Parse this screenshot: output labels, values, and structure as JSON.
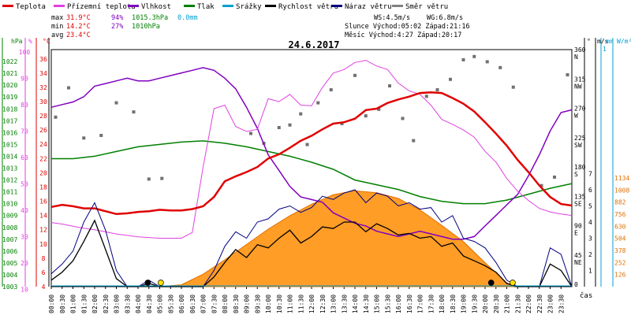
{
  "legend": [
    {
      "label": "Teplota",
      "color": "#e00000"
    },
    {
      "label": "Přízemní teplota",
      "color": "#e040e0"
    },
    {
      "label": "Vlhkost",
      "color": "#8000c0"
    },
    {
      "label": "Tlak",
      "color": "#008000"
    },
    {
      "label": "Srážky",
      "color": "#00a0d0"
    },
    {
      "label": "Rychlost větru",
      "color": "#000000"
    },
    {
      "label": "Náraz větru",
      "color": "#000080"
    },
    {
      "label": "Směr větru",
      "color": "#808080"
    }
  ],
  "summary": {
    "max_label": "max",
    "max_temp": "31.9°C",
    "max_hum": "94%",
    "max_press": "1015.3hPa",
    "rain": "0.0mm",
    "min_label": "min",
    "min_temp": "14.2°C",
    "min_hum": "27%",
    "min_press": "1010hPa",
    "avg_label": "avg",
    "avg_temp": "23.4°C",
    "ws": "WS:4.5m/s",
    "wg": "WG:6.8m/s",
    "sun": "Slunce Východ:05:02  Západ:21:16",
    "moon": "Měsíc  Východ:4:27  Západ:20:17"
  },
  "chart_data": {
    "type": "line",
    "title": "24.6.2017",
    "xlabel": "čas",
    "x_ticks": [
      "00:00",
      "00:30",
      "01:00",
      "01:30",
      "02:00",
      "02:30",
      "03:00",
      "03:30",
      "04:00",
      "04:30",
      "05:00",
      "05:30",
      "06:00",
      "06:30",
      "07:00",
      "07:30",
      "08:00",
      "08:30",
      "09:00",
      "09:30",
      "10:00",
      "10:30",
      "11:00",
      "11:30",
      "12:00",
      "12:30",
      "13:00",
      "13:30",
      "14:00",
      "14:30",
      "15:00",
      "15:30",
      "16:00",
      "16:30",
      "17:00",
      "17:30",
      "18:00",
      "18:30",
      "19:00",
      "19:30",
      "20:00",
      "20:30",
      "21:00",
      "21:30",
      "22:00",
      "22:30",
      "23:00",
      "23:30"
    ],
    "axes": {
      "hPa": {
        "label": "hPa",
        "ticks": [
          "1022",
          "1021",
          "1020",
          "1019",
          "1018",
          "1017",
          "1016",
          "1015",
          "1014",
          "1013",
          "1012",
          "1011",
          "1010",
          "1009",
          "1008",
          "1007",
          "1006",
          "1005",
          "1004",
          "1003"
        ],
        "range": [
          1003,
          1023
        ]
      },
      "percent": {
        "label": "%",
        "ticks": [
          "100",
          "90",
          "80",
          "70",
          "60",
          "50",
          "40",
          "30",
          "20",
          "10"
        ]
      },
      "celsius": {
        "label": "°C",
        "ticks": [
          "36",
          "34",
          "32",
          "30",
          "28",
          "26",
          "24",
          "22",
          "20",
          "18",
          "16",
          "14",
          "12",
          "10",
          "8",
          "6",
          "4"
        ],
        "range": [
          4,
          37.3
        ]
      },
      "wind_dir": {
        "label": "°",
        "ticks": [
          "360 N",
          "315 NW",
          "270 W",
          "225 SW",
          "180 S",
          "135 SE",
          "90 E",
          "45 NE",
          "0"
        ]
      },
      "ms": {
        "label": "m/s",
        "ticks": [
          "7",
          "6",
          "5",
          "4",
          "3",
          "2",
          "1"
        ]
      },
      "mm": {
        "label": "mm",
        "ticks": [
          "1"
        ]
      },
      "wm2": {
        "label": "W/m²",
        "ticks": [
          "1134",
          "1008",
          "882",
          "756",
          "630",
          "504",
          "378",
          "252",
          "126"
        ]
      }
    },
    "series": [
      {
        "name": "Teplota",
        "unit": "°C",
        "x": [
          0,
          0.5,
          1,
          1.5,
          2,
          2.5,
          3,
          3.5,
          4,
          4.5,
          5,
          5.5,
          6,
          6.5,
          7,
          7.5,
          8,
          8.5,
          9,
          9.5,
          10,
          10.5,
          11,
          11.5,
          12,
          12.5,
          13,
          13.5,
          14,
          14.5,
          15,
          15.5,
          16,
          16.5,
          17,
          17.5,
          18,
          18.5,
          19,
          19.5,
          20,
          20.5,
          21,
          21.5,
          22,
          22.5,
          23,
          23.5,
          24
        ],
        "values": [
          15.2,
          15.5,
          15.3,
          15.0,
          15.0,
          14.6,
          14.2,
          14.3,
          14.5,
          14.6,
          14.8,
          14.7,
          14.7,
          14.9,
          15.3,
          16.6,
          18.8,
          19.5,
          20.1,
          20.8,
          22.0,
          22.6,
          23.5,
          24.5,
          25.2,
          26.1,
          26.9,
          27.1,
          27.6,
          28.8,
          29.0,
          29.8,
          30.3,
          30.7,
          31.2,
          31.3,
          31.2,
          30.5,
          29.7,
          28.6,
          27.1,
          25.5,
          23.8,
          21.8,
          20.1,
          18.2,
          16.6,
          15.6,
          15.4
        ]
      },
      {
        "name": "Přízemní teplota",
        "unit": "°C",
        "x": [
          0,
          0.5,
          1,
          1.5,
          2,
          2.5,
          3,
          3.5,
          4,
          4.5,
          5,
          5.5,
          6,
          6.5,
          7,
          7.5,
          8,
          8.5,
          9,
          9.5,
          10,
          10.5,
          11,
          11.5,
          12,
          12.5,
          13,
          13.5,
          14,
          14.5,
          15,
          15.5,
          16,
          16.5,
          17,
          17.5,
          18,
          18.5,
          19,
          19.5,
          20,
          20.5,
          21,
          21.5,
          22,
          22.5,
          23,
          23.5,
          24
        ],
        "values": [
          13.0,
          12.8,
          12.5,
          12.2,
          12.0,
          11.7,
          11.4,
          11.2,
          11.0,
          10.9,
          10.8,
          10.8,
          10.8,
          11.6,
          20.8,
          29.0,
          29.5,
          26.5,
          25.8,
          26.1,
          30.4,
          30.0,
          31.0,
          29.5,
          29.4,
          32.0,
          34.0,
          34.5,
          35.5,
          35.8,
          35.0,
          34.5,
          32.6,
          31.5,
          31.0,
          29.5,
          27.5,
          26.8,
          26.0,
          25.0,
          23.0,
          21.5,
          19.2,
          17.4,
          16.1,
          15.0,
          14.5,
          14.2,
          14.0
        ]
      },
      {
        "name": "Vlhkost",
        "unit": "%",
        "x": [
          0,
          0.5,
          1,
          1.5,
          2,
          2.5,
          3,
          3.5,
          4,
          4.5,
          5,
          5.5,
          6,
          6.5,
          7,
          7.5,
          8,
          8.5,
          9,
          9.5,
          10,
          10.5,
          11,
          11.5,
          12,
          12.5,
          13,
          13.5,
          14,
          14.5,
          15,
          15.5,
          16,
          16.5,
          17,
          17.5,
          18,
          18.5,
          19,
          19.5,
          20,
          20.5,
          21,
          21.5,
          22,
          22.5,
          23,
          23.5,
          24
        ],
        "values": [
          78,
          79,
          80,
          82,
          86,
          87,
          88,
          89,
          88,
          88,
          89,
          90,
          91,
          92,
          93,
          92,
          89,
          85,
          78,
          70,
          60,
          54,
          48,
          44,
          43,
          42,
          38,
          36,
          34,
          33,
          31,
          30,
          29,
          30,
          31,
          30,
          29,
          28,
          28,
          29,
          33,
          37,
          41,
          45,
          52,
          60,
          69,
          76,
          77
        ]
      },
      {
        "name": "Tlak",
        "unit": "hPa",
        "x": [
          0,
          1,
          2,
          3,
          4,
          5,
          6,
          7,
          8,
          9,
          10,
          11,
          12,
          13,
          14,
          15,
          16,
          17,
          18,
          19,
          20,
          21,
          22,
          23,
          24
        ],
        "values": [
          1013.8,
          1013.8,
          1014.0,
          1014.4,
          1014.8,
          1015.0,
          1015.2,
          1015.3,
          1015.1,
          1014.8,
          1014.4,
          1014.0,
          1013.5,
          1012.9,
          1012.0,
          1011.6,
          1011.2,
          1010.6,
          1010.2,
          1010.0,
          1010.0,
          1010.3,
          1010.8,
          1011.3,
          1011.7
        ]
      },
      {
        "name": "Srážky",
        "unit": "mm",
        "x": [
          0,
          24
        ],
        "values": [
          0,
          0
        ]
      },
      {
        "name": "Rychlost větru",
        "unit": "m/s",
        "x": [
          0,
          0.5,
          1,
          1.5,
          2,
          2.5,
          3,
          3.5,
          4,
          4.5,
          5,
          5.5,
          6,
          6.5,
          7,
          7.5,
          8,
          8.5,
          9,
          9.5,
          10,
          10.5,
          11,
          11.5,
          12,
          12.5,
          13,
          13.5,
          14,
          14.5,
          15,
          15.5,
          16,
          16.5,
          17,
          17.5,
          18,
          18.5,
          19,
          19.5,
          20,
          20.5,
          21,
          21.5,
          22,
          22.5,
          23,
          23.5,
          24
        ],
        "values": [
          0.4,
          0.9,
          1.6,
          2.8,
          4.1,
          2.3,
          0.5,
          0.0,
          0.0,
          0.2,
          0.0,
          0.0,
          0.0,
          0.0,
          0.0,
          0.6,
          1.5,
          2.3,
          1.8,
          2.6,
          2.4,
          3.0,
          3.5,
          2.7,
          3.1,
          3.7,
          3.6,
          4.0,
          4.0,
          3.4,
          3.9,
          3.6,
          3.2,
          3.3,
          3.0,
          3.1,
          2.5,
          2.7,
          1.9,
          1.6,
          1.3,
          0.9,
          0.2,
          0.0,
          0.0,
          0.0,
          1.4,
          1.0,
          0.0
        ]
      },
      {
        "name": "Náraz větru",
        "unit": "m/s",
        "x": [
          0,
          0.5,
          1,
          1.5,
          2,
          2.5,
          3,
          3.5,
          4,
          4.5,
          5,
          5.5,
          6,
          6.5,
          7,
          7.5,
          8,
          8.5,
          9,
          9.5,
          10,
          10.5,
          11,
          11.5,
          12,
          12.5,
          13,
          13.5,
          14,
          14.5,
          15,
          15.5,
          16,
          16.5,
          17,
          17.5,
          18,
          18.5,
          19,
          19.5,
          20,
          20.5,
          21,
          21.5,
          22,
          22.5,
          23,
          23.5,
          24
        ],
        "values": [
          0.8,
          1.4,
          2.2,
          4.0,
          5.2,
          3.5,
          1.0,
          0.0,
          0.0,
          0.4,
          0.0,
          0.0,
          0.0,
          0.0,
          0.0,
          1.0,
          2.5,
          3.4,
          3.0,
          4.0,
          4.2,
          4.8,
          5.0,
          4.6,
          4.9,
          5.6,
          5.4,
          5.8,
          6.0,
          5.2,
          5.8,
          5.6,
          5.0,
          5.2,
          4.8,
          4.9,
          4.0,
          4.4,
          3.0,
          2.8,
          2.4,
          1.5,
          0.4,
          0.0,
          0.0,
          0.0,
          2.4,
          2.0,
          0.0
        ]
      },
      {
        "name": "Směr větru",
        "unit": "°",
        "x": [
          0.2,
          0.8,
          1.5,
          2.3,
          3.0,
          3.8,
          4.5,
          5.1,
          9.2,
          9.8,
          10.5,
          11.0,
          11.5,
          11.8,
          12.3,
          12.9,
          13.4,
          14.0,
          14.5,
          15.1,
          15.6,
          16.2,
          16.7,
          17.3,
          17.8,
          18.4,
          19.0,
          19.5,
          20.1,
          20.7,
          21.3,
          22.6,
          23.2,
          23.8
        ],
        "values": [
          260,
          305,
          228,
          232,
          282,
          268,
          165,
          166,
          235,
          220,
          244,
          248,
          265,
          218,
          282,
          302,
          250,
          324,
          262,
          272,
          308,
          258,
          224,
          292,
          302,
          318,
          348,
          353,
          345,
          336,
          306,
          155,
          168,
          325
        ]
      },
      {
        "name": "Slunce",
        "unit": "W/m²",
        "x": [
          5.0,
          6,
          7,
          8,
          9,
          10,
          11,
          12,
          13,
          14,
          15,
          16,
          17,
          18,
          19,
          20,
          21,
          21.3
        ],
        "values": [
          0,
          20,
          130,
          280,
          440,
          600,
          740,
          860,
          960,
          1000,
          980,
          920,
          800,
          640,
          470,
          250,
          40,
          0
        ]
      }
    ]
  }
}
